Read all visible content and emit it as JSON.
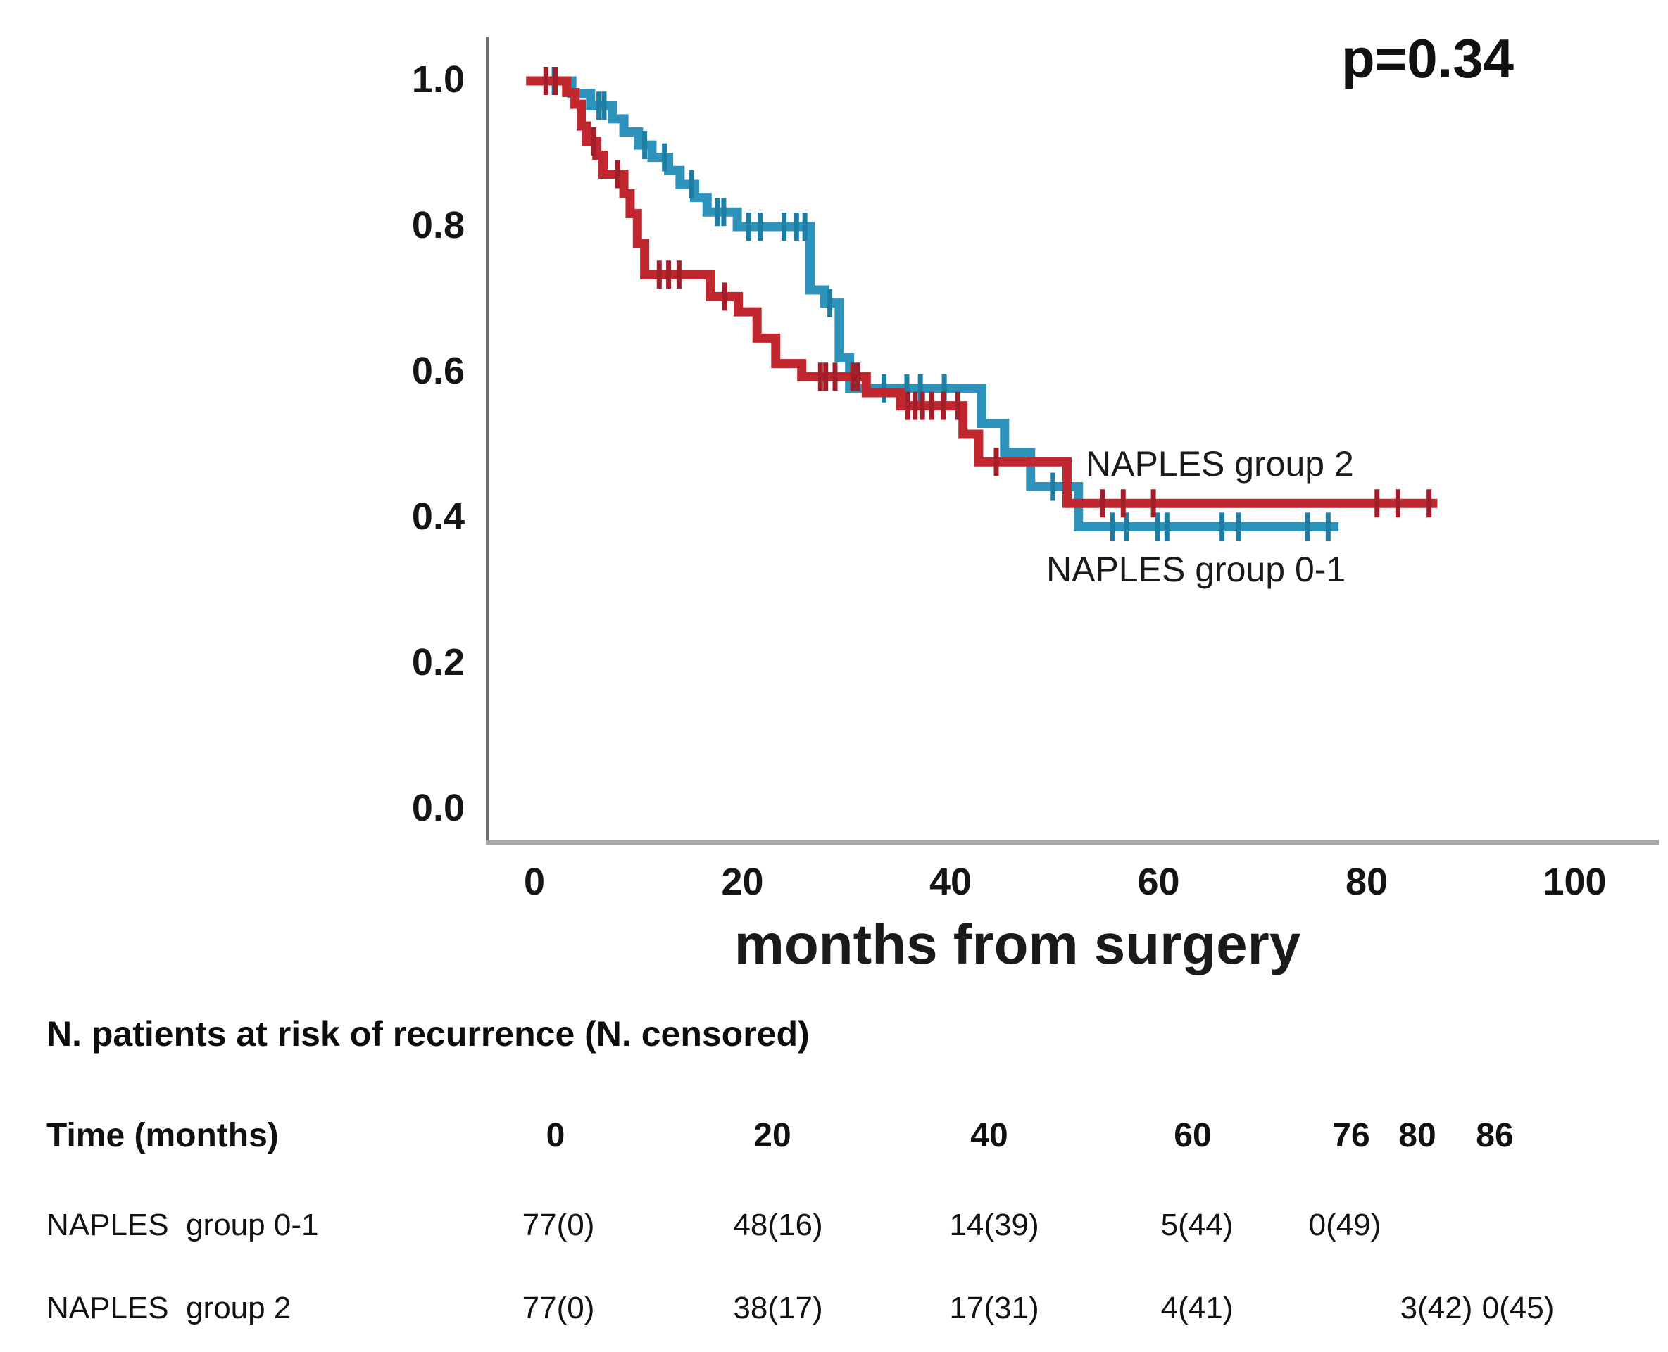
{
  "chart_data": {
    "type": "line",
    "subtype": "kaplan-meier-step",
    "title": "",
    "p_label": "p=0.34",
    "xlabel": "months from surgery",
    "ylabel": "",
    "x_ticks": [
      0,
      20,
      40,
      60,
      80,
      100
    ],
    "y_tick_labels": [
      "1.0",
      "0.8",
      "0.6",
      "0.4",
      "0.2",
      "0.0"
    ],
    "xlim": [
      0,
      100
    ],
    "ylim": [
      0.0,
      1.0
    ],
    "grid": false,
    "legend_position": "inline-right-of-curves",
    "series": [
      {
        "id": "group-0-1",
        "name": "NAPLES group 0-1",
        "color": "#2e93ba",
        "censor_color": "#1d7da2",
        "start_time": 0.8,
        "end_time": 77.3,
        "steps": [
          [
            0.8,
            1.0
          ],
          [
            3.6,
            0.983
          ],
          [
            5.4,
            0.966
          ],
          [
            7.5,
            0.948
          ],
          [
            8.6,
            0.93
          ],
          [
            10.0,
            0.912
          ],
          [
            11.3,
            0.895
          ],
          [
            12.9,
            0.877
          ],
          [
            14.0,
            0.858
          ],
          [
            15.4,
            0.84
          ],
          [
            16.6,
            0.82
          ],
          [
            19.5,
            0.8
          ],
          [
            26.5,
            0.713
          ],
          [
            27.9,
            0.695
          ],
          [
            29.3,
            0.62
          ],
          [
            30.3,
            0.578
          ],
          [
            43.0,
            0.53
          ],
          [
            45.2,
            0.49
          ],
          [
            47.7,
            0.443
          ],
          [
            52.3,
            0.388
          ]
        ],
        "censor_times": [
          1.9,
          6.2,
          6.7,
          10.6,
          12.5,
          15.1,
          17.6,
          18.2,
          20.6,
          21.7,
          24.0,
          25.2,
          26.0,
          28.4,
          33.6,
          35.8,
          37.1,
          39.4,
          49.8,
          55.6,
          56.9,
          59.9,
          60.8,
          66.1,
          67.7,
          74.3,
          76.3
        ]
      },
      {
        "id": "group-2",
        "name": "NAPLES group 2",
        "color": "#c1272f",
        "censor_color": "#a21f2a",
        "start_time": -0.8,
        "end_time": 86.8,
        "steps": [
          [
            -0.8,
            1.0
          ],
          [
            3.1,
            0.984
          ],
          [
            3.9,
            0.968
          ],
          [
            4.5,
            0.938
          ],
          [
            5.0,
            0.917
          ],
          [
            6.0,
            0.898
          ],
          [
            6.6,
            0.872
          ],
          [
            8.6,
            0.845
          ],
          [
            9.2,
            0.818
          ],
          [
            9.9,
            0.777
          ],
          [
            10.6,
            0.734
          ],
          [
            16.9,
            0.704
          ],
          [
            19.6,
            0.683
          ],
          [
            21.4,
            0.647
          ],
          [
            23.2,
            0.612
          ],
          [
            25.7,
            0.594
          ],
          [
            31.9,
            0.572
          ],
          [
            35.2,
            0.554
          ],
          [
            41.2,
            0.515
          ],
          [
            42.7,
            0.477
          ],
          [
            51.2,
            0.42
          ]
        ],
        "censor_times": [
          1.1,
          2.0,
          5.7,
          8.0,
          12.0,
          12.9,
          13.9,
          18.3,
          27.5,
          28.0,
          28.9,
          30.6,
          31.1,
          35.9,
          36.6,
          37.3,
          38.2,
          39.3,
          40.7,
          44.4,
          54.6,
          56.6,
          59.5,
          81.0,
          83.0,
          86.0
        ]
      }
    ]
  },
  "risk_table": {
    "title": "N. patients at risk of recurrence (N. censored)",
    "time_label": "Time (months)",
    "time_cols": [
      "0",
      "20",
      "40",
      "60",
      "76",
      "80",
      "86"
    ],
    "rows": [
      {
        "label": "NAPLES  group 0-1",
        "v0": "77(0)",
        "v20": "48(16)",
        "v40": "14(39)",
        "v60": "5(44)",
        "v76": "0(49)"
      },
      {
        "label": "NAPLES  group 2",
        "v0": "77(0)",
        "v20": "38(17)",
        "v40": "17(31)",
        "v60": "4(41)",
        "v80": "3(42)",
        "v86": "0(45)"
      }
    ]
  }
}
